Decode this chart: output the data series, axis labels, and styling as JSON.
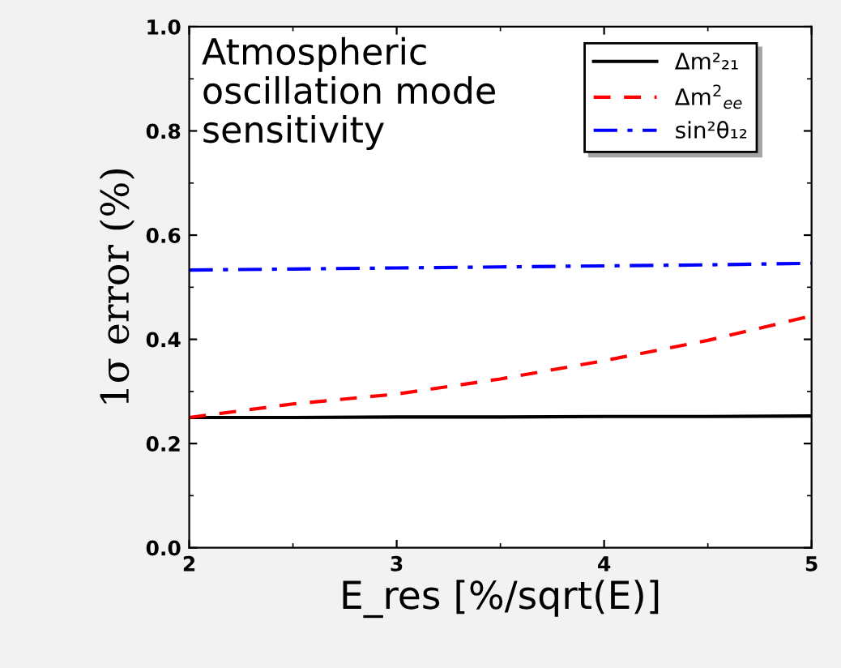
{
  "chart_data": {
    "type": "line",
    "xlabel": "E_res [%/sqrt(E)]",
    "ylabel": "1σ error (%)",
    "annotations": [
      "Atmospheric\noscillation mode\nsensitivity"
    ],
    "x": [
      2,
      2.5,
      3,
      3.5,
      4,
      4.5,
      5
    ],
    "series": [
      {
        "name": "Δm²₂₁",
        "color": "#000000",
        "line_style": "solid",
        "values": [
          0.25,
          0.25,
          0.251,
          0.251,
          0.252,
          0.252,
          0.253
        ]
      },
      {
        "name": "Δm$^{2}$$_{ee}$",
        "color": "#ff0000",
        "line_style": "dashed",
        "values": [
          0.25,
          0.276,
          0.295,
          0.324,
          0.359,
          0.398,
          0.445
        ]
      },
      {
        "name": "sin²θ₁₂",
        "color": "#0000ff",
        "line_style": "dashdot",
        "values": [
          0.533,
          0.535,
          0.537,
          0.539,
          0.541,
          0.543,
          0.546
        ]
      }
    ],
    "xlim": [
      2,
      5
    ],
    "xticks": [
      2,
      3,
      4,
      5
    ],
    "ylim": [
      0,
      1
    ],
    "yticks": [
      {
        "value": 0,
        "label": "0.0"
      },
      {
        "value": 0.2,
        "label": "0.2"
      },
      {
        "value": 0.4,
        "label": "0.4"
      },
      {
        "value": 0.6,
        "label": "0.6"
      },
      {
        "value": 0.8,
        "label": "0.8"
      },
      {
        "value": 1,
        "label": "1.0"
      }
    ],
    "grid": false,
    "legend": "top right",
    "marker": "none"
  }
}
